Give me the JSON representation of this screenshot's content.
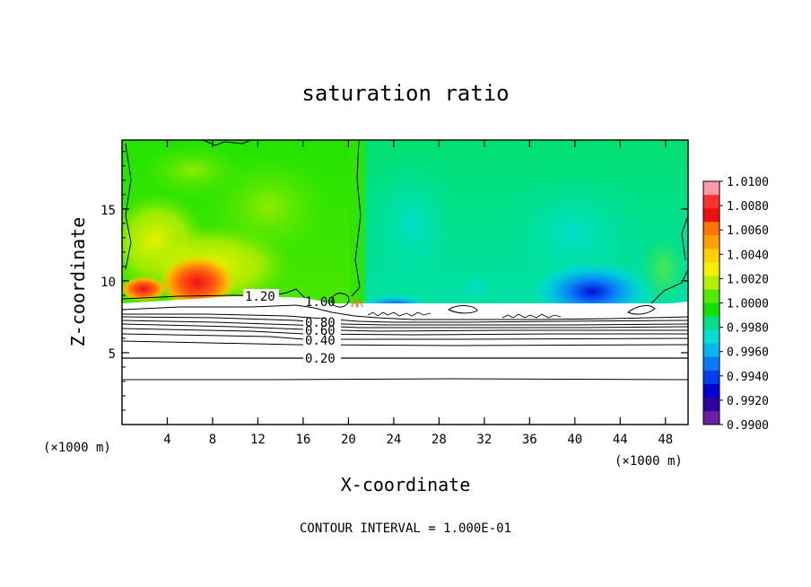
{
  "chart_data": {
    "type": "heatmap",
    "title": "saturation ratio",
    "xlabel": "X-coordinate",
    "ylabel": "Z-coordinate",
    "x_unit": "(×1000 m)",
    "y_unit": "(×1000 m)",
    "xlim": [
      0,
      50
    ],
    "ylim": [
      0,
      19.8
    ],
    "x_ticks": [
      4,
      8,
      12,
      16,
      20,
      24,
      28,
      32,
      36,
      40,
      44,
      48
    ],
    "y_ticks": [
      5,
      10,
      15
    ],
    "colorbar": {
      "labels": [
        "1.0100",
        "1.0080",
        "1.0060",
        "1.0040",
        "1.0020",
        "1.0000",
        "0.9980",
        "0.9960",
        "0.9940",
        "0.9920",
        "0.9900"
      ],
      "colors": [
        "#ff9aa8",
        "#ff3030",
        "#ee1010",
        "#ff7700",
        "#ffa000",
        "#ffd000",
        "#f2f200",
        "#b0f000",
        "#55e800",
        "#12e000",
        "#00e08a",
        "#00dfd0",
        "#00b8f0",
        "#0a7af8",
        "#0040f0",
        "#0000d0",
        "#3000a0",
        "#6a1fa0"
      ],
      "range": [
        0.99,
        1.01
      ]
    },
    "contour_labels": [
      "1.20",
      "1.00",
      "0.80",
      "0.60",
      "0.40",
      "0.20"
    ],
    "contour_interval_text": "CONTOUR INTERVAL = 1.000E-01"
  }
}
